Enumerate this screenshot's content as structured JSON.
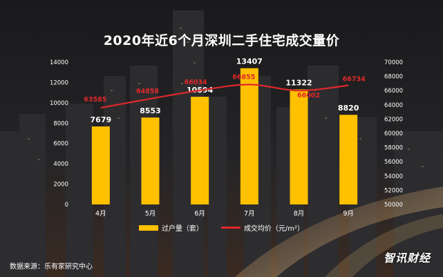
{
  "title": "2020年近6个月深圳二手住宅成交量价",
  "source": "数据来源：乐有家研究中心",
  "brand": {
    "text_a": "智讯",
    "text_b": "财经"
  },
  "colors": {
    "bar": "#ffc000",
    "line": "#e0282a",
    "text": "#ffffff",
    "line_label": "#e0282a"
  },
  "chart_data": {
    "type": "bar",
    "categories": [
      "4月",
      "5月",
      "6月",
      "7月",
      "8月",
      "9月"
    ],
    "series": [
      {
        "name": "过户量（套）",
        "type": "bar",
        "axis": "left",
        "values": [
          7679,
          8553,
          10594,
          13407,
          11322,
          8820
        ]
      },
      {
        "name": "成交均价（元/m²）",
        "type": "line",
        "axis": "right",
        "values": [
          63585,
          64858,
          66034,
          66855,
          66002,
          66734
        ]
      }
    ],
    "left_axis": {
      "ylim": [
        0,
        14000
      ],
      "ticks": [
        "0",
        "2000",
        "4000",
        "6000",
        "8000",
        "10000",
        "12000",
        "14000"
      ]
    },
    "right_axis": {
      "ylim": [
        50000,
        70000
      ],
      "ticks": [
        "50000",
        "52000",
        "54000",
        "56000",
        "58000",
        "60000",
        "62000",
        "64000",
        "66000",
        "68000",
        "70000"
      ]
    },
    "bar_labels": [
      "7679",
      "8553",
      "10594",
      "13407",
      "11322",
      "8820"
    ],
    "line_labels": [
      "63585",
      "64858",
      "66034",
      "66855",
      "66002",
      "66734"
    ],
    "grid": false,
    "legend": "bottom"
  }
}
